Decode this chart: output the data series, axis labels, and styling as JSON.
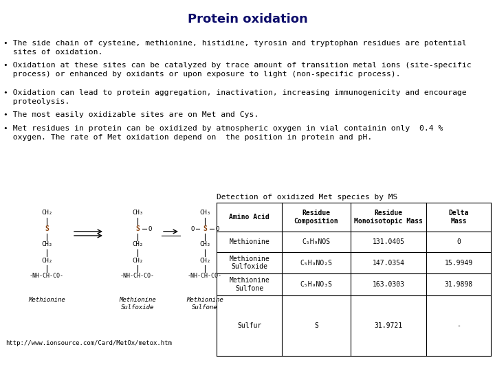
{
  "title": "Protein oxidation",
  "title_fontsize": 13,
  "title_color": "#0d0d6b",
  "bg_color": "#ffffff",
  "text_color": "#000000",
  "bullet_fontsize": 8.2,
  "table_title": "Detection of oxidized Met species by MS",
  "table_headers": [
    "Amino Acid",
    "Residue\nComposition",
    "Residue\nMonoisotopic Mass",
    "Delta\nMass"
  ],
  "table_rows": [
    [
      "Methionine",
      "C₅H₉NOS",
      "131.0405",
      "0"
    ],
    [
      "Methionine\nSulfoxide",
      "C₅H₉NO₂S",
      "147.0354",
      "15.9949"
    ],
    [
      "Methionine\nSulfone",
      "C₅H₉NO₃S",
      "163.0303",
      "31.9898"
    ],
    [
      "Sulfur",
      "S",
      "31.9721",
      "-"
    ]
  ],
  "url_text": "http://www.ionsource.com/Card/MetOx/metox.htm"
}
